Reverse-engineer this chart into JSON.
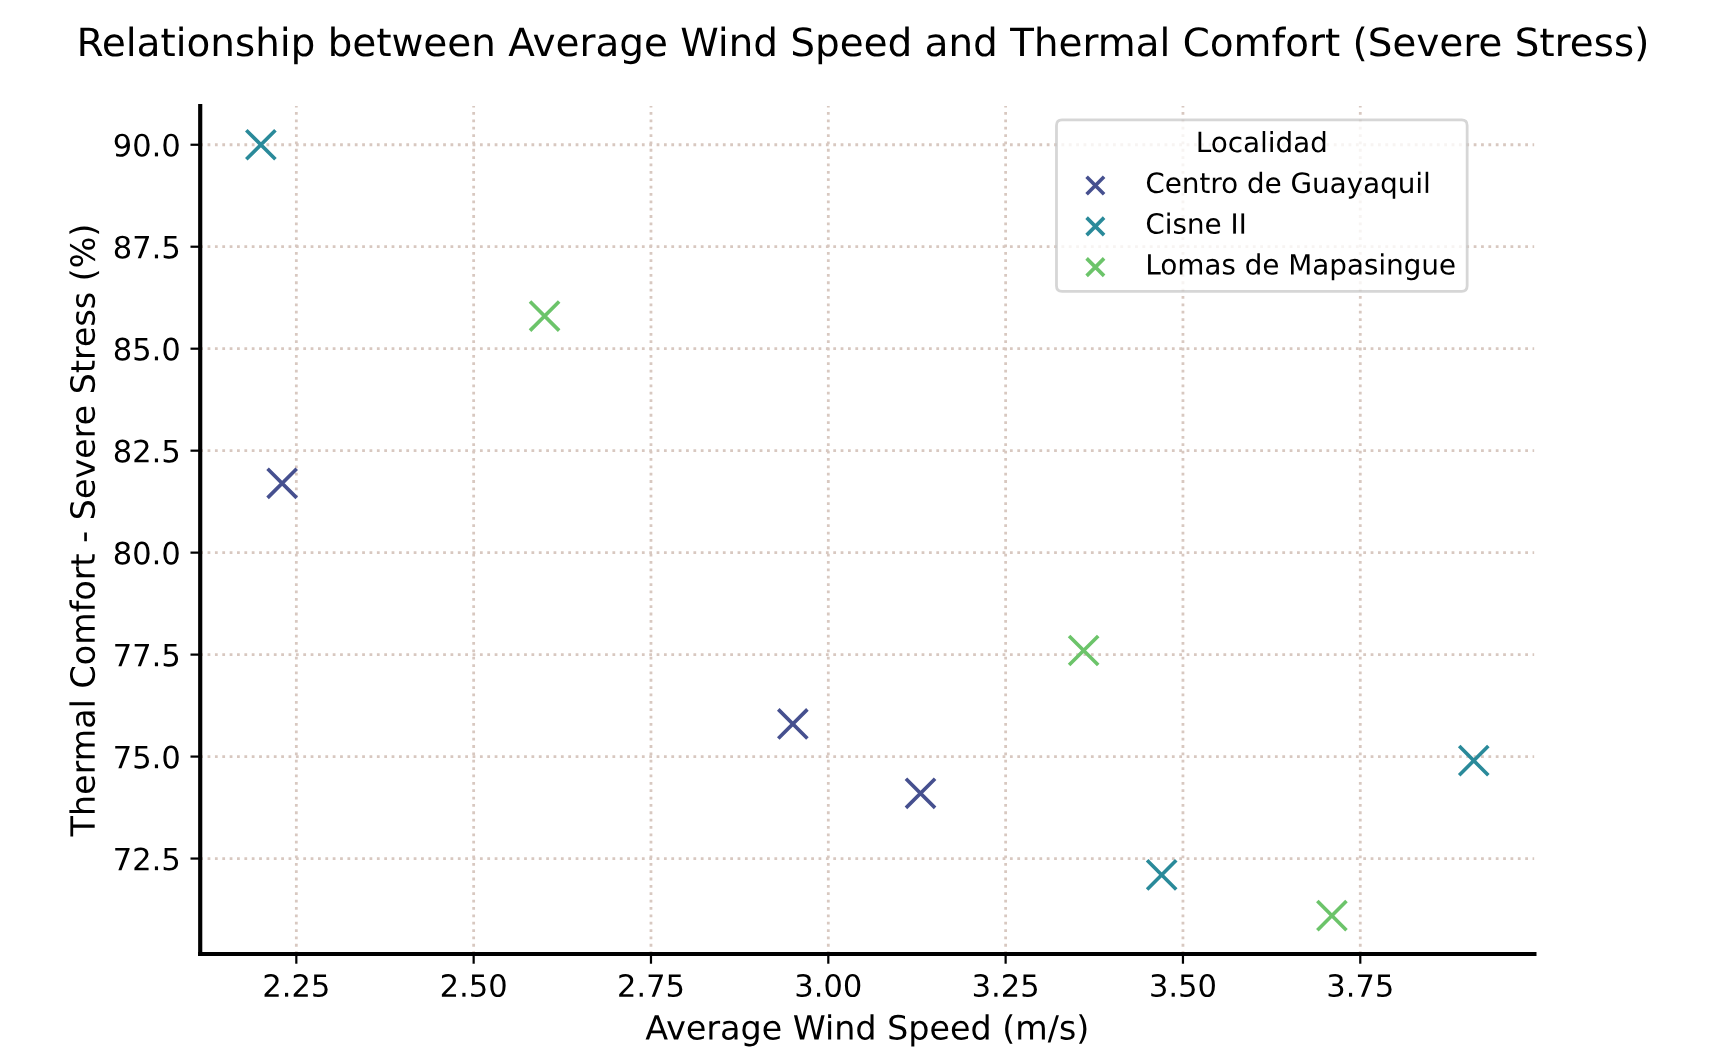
{
  "chart_data": {
    "type": "scatter",
    "title": "Relationship between Average Wind Speed and Thermal Comfort (Severe Stress)",
    "xlabel": "Average Wind Speed (m/s)",
    "ylabel": "Thermal Comfort - Severe Stress (%)",
    "legend_title": "Localidad",
    "series": [
      {
        "name": "Centro de Guayaquil",
        "color": "#46508f",
        "x": [
          2.23,
          2.95,
          3.13
        ],
        "values": [
          81.7,
          75.8,
          74.1
        ]
      },
      {
        "name": "Cisne II",
        "color": "#2a8a9a",
        "x": [
          2.2,
          3.47,
          3.91
        ],
        "values": [
          90.0,
          72.1,
          74.9
        ]
      },
      {
        "name": "Lomas de Mapasingue",
        "color": "#6cc46a",
        "x": [
          2.6,
          3.36,
          3.71
        ],
        "values": [
          85.8,
          77.6,
          71.1
        ]
      }
    ],
    "xlim": [
      2.1145,
      3.9955
    ],
    "ylim": [
      70.16,
      90.95
    ],
    "xticks": [
      2.25,
      {
        "value": 2.5,
        "label": "2.50"
      },
      2.75,
      {
        "value": 3,
        "label": "3.00"
      },
      3.25,
      {
        "value": 3.5,
        "label": "3.50"
      },
      3.75
    ],
    "yticks": [
      72.5,
      {
        "value": 75,
        "label": "75.0"
      },
      77.5,
      {
        "value": 80,
        "label": "80.0"
      },
      82.5,
      {
        "value": 85,
        "label": "85.0"
      },
      87.5,
      {
        "value": 90,
        "label": "90.0"
      }
    ],
    "grid": true,
    "legend": "top right",
    "marker": "cross"
  }
}
